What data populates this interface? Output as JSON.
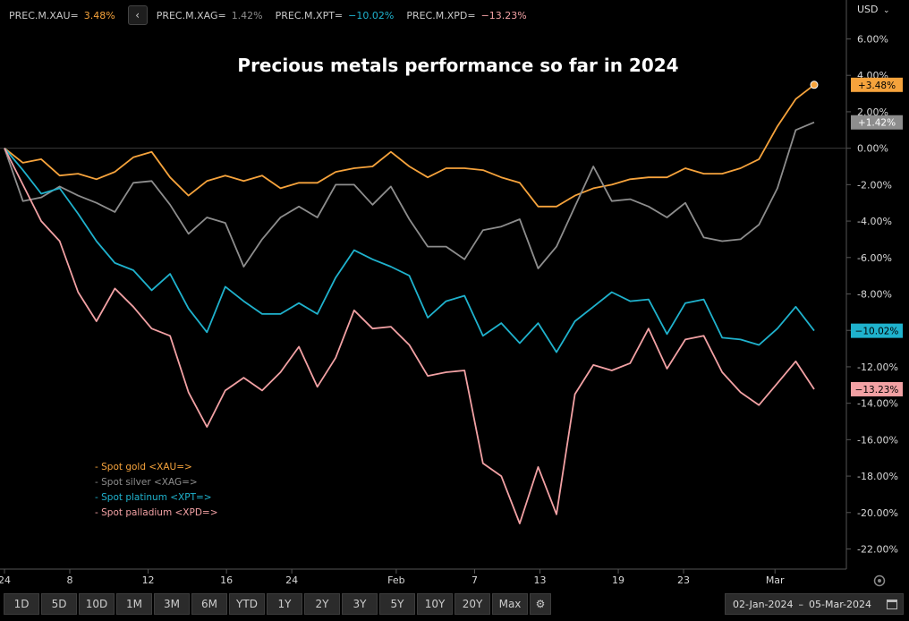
{
  "header": {
    "series_legend": [
      {
        "label": "PREC.M.XAU=",
        "value": "3.48%",
        "color": "#f6a33c"
      },
      {
        "label": "PREC.M.XAG=",
        "value": "1.42%",
        "color": "#8d8d8d"
      },
      {
        "label": "PREC.M.XPT=",
        "value": "−10.02%",
        "color": "#1fb2cd"
      },
      {
        "label": "PREC.M.XPD=",
        "value": "−13.23%",
        "color": "#f2a1a4"
      }
    ],
    "back_button": "‹",
    "currency": "USD"
  },
  "chart_data": {
    "type": "line",
    "title": "Precious metals performance so far in 2024",
    "xlabel": "",
    "ylabel": "",
    "ylim": [
      -23,
      8
    ],
    "y_ticks": [
      "6.00%",
      "4.00%",
      "2.00%",
      "0.00%",
      "-2.00%",
      "-4.00%",
      "-6.00%",
      "-8.00%",
      "-10.00%",
      "-12.00%",
      "-14.00%",
      "-16.00%",
      "-18.00%",
      "-20.00%",
      "-22.00%"
    ],
    "x_ticks": [
      "24",
      "8",
      "12",
      "16",
      "24",
      "Feb",
      "7",
      "13",
      "19",
      "23",
      "Mar"
    ],
    "grid": false,
    "legend_position": "bottom-left",
    "series": [
      {
        "name": "Spot gold <XAU=>",
        "color": "#f6a33c",
        "end_label": "+3.48%",
        "values": [
          0,
          -0.8,
          -0.6,
          -1.5,
          -1.4,
          -1.7,
          -1.3,
          -0.5,
          -0.2,
          -1.6,
          -2.6,
          -1.8,
          -1.5,
          -1.8,
          -1.5,
          -2.2,
          -1.9,
          -1.9,
          -1.3,
          -1.1,
          -1.0,
          -0.2,
          -1.0,
          -1.6,
          -1.1,
          -1.1,
          -1.2,
          -1.6,
          -1.9,
          -3.2,
          -3.2,
          -2.6,
          -2.2,
          -2.0,
          -1.7,
          -1.6,
          -1.6,
          -1.1,
          -1.4,
          -1.4,
          -1.1,
          -0.6,
          1.2,
          2.7,
          3.48
        ]
      },
      {
        "name": "Spot silver <XAG=>",
        "color": "#8d8d8d",
        "end_label": "+1.42%",
        "values": [
          0,
          -2.9,
          -2.7,
          -2.1,
          -2.6,
          -3.0,
          -3.5,
          -1.9,
          -1.8,
          -3.1,
          -4.7,
          -3.8,
          -4.1,
          -6.5,
          -5.0,
          -3.8,
          -3.2,
          -3.8,
          -2.0,
          -2.0,
          -3.1,
          -2.1,
          -3.9,
          -5.4,
          -5.4,
          -6.1,
          -4.5,
          -4.3,
          -3.9,
          -6.6,
          -5.4,
          -3.2,
          -1.0,
          -2.9,
          -2.8,
          -3.2,
          -3.8,
          -3.0,
          -4.9,
          -5.1,
          -5.0,
          -4.2,
          -2.2,
          1.0,
          1.42
        ]
      },
      {
        "name": "Spot platinum <XPT=>",
        "color": "#1fb2cd",
        "end_label": "−10.02%",
        "values": [
          0,
          -1.2,
          -2.5,
          -2.2,
          -3.6,
          -5.1,
          -6.3,
          -6.7,
          -7.8,
          -6.9,
          -8.8,
          -10.1,
          -7.6,
          -8.4,
          -9.1,
          -9.1,
          -8.5,
          -9.1,
          -7.1,
          -5.6,
          -6.1,
          -6.5,
          -7.0,
          -9.3,
          -8.4,
          -8.1,
          -10.3,
          -9.6,
          -10.7,
          -9.6,
          -11.2,
          -9.5,
          -8.7,
          -7.9,
          -8.4,
          -8.3,
          -10.2,
          -8.5,
          -8.3,
          -10.4,
          -10.5,
          -10.8,
          -9.9,
          -8.7,
          -10.02
        ]
      },
      {
        "name": "Spot palladium <XPD=>",
        "color": "#f2a1a4",
        "end_label": "−13.23%",
        "values": [
          0,
          -2.0,
          -4.0,
          -5.1,
          -7.9,
          -9.5,
          -7.7,
          -8.7,
          -9.9,
          -10.3,
          -13.4,
          -15.3,
          -13.3,
          -12.6,
          -13.3,
          -12.3,
          -10.9,
          -13.1,
          -11.5,
          -8.9,
          -9.9,
          -9.8,
          -10.8,
          -12.5,
          -12.3,
          -12.2,
          -17.3,
          -18.0,
          -20.6,
          -17.5,
          -20.1,
          -13.5,
          -11.9,
          -12.2,
          -11.8,
          -9.9,
          -12.1,
          -10.5,
          -10.3,
          -12.3,
          -13.4,
          -14.1,
          -12.9,
          -11.7,
          -13.23
        ]
      }
    ]
  },
  "toolbar": {
    "ranges": [
      "1D",
      "5D",
      "10D",
      "1M",
      "3M",
      "6M",
      "YTD",
      "1Y",
      "2Y",
      "3Y",
      "5Y",
      "10Y",
      "20Y",
      "Max"
    ],
    "gear": "⚙"
  },
  "date_range": {
    "start": "02-Jan-2024",
    "separator": "–",
    "end": "05-Mar-2024"
  }
}
